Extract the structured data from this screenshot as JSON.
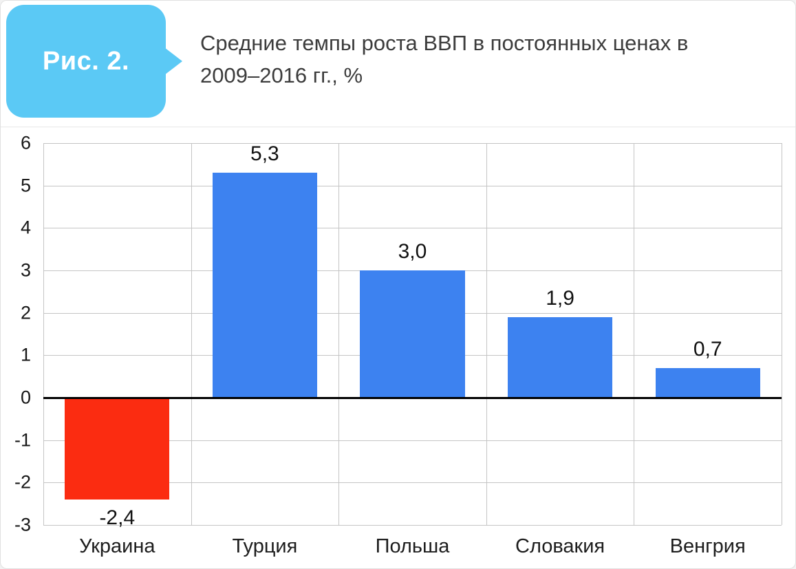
{
  "header": {
    "figure_label": "Рис. 2.",
    "title": "Средние темпы роста ВВП в постоянных ценах в 2009–2016 гг., %"
  },
  "colors": {
    "badge_bg": "#5bc9f5",
    "badge_text": "#ffffff",
    "title_text": "#3c3c3c",
    "bar_positive": "#3d82f0",
    "bar_negative": "#fb2c11",
    "grid": "#c4c4c4",
    "zero_line": "#000000"
  },
  "chart_data": {
    "type": "bar",
    "title": "Средние темпы роста ВВП в постоянных ценах в 2009–2016 гг., %",
    "categories": [
      "Украина",
      "Турция",
      "Польша",
      "Словакия",
      "Венгрия"
    ],
    "values": [
      -2.4,
      5.3,
      3.0,
      1.9,
      0.7
    ],
    "labels": [
      "-2,4",
      "5,3",
      "3,0",
      "1,9",
      "0,7"
    ],
    "xlabel": "",
    "ylabel": "",
    "ylim": [
      -3,
      6
    ],
    "ytick_step": 1,
    "grid": true,
    "legend": false
  }
}
